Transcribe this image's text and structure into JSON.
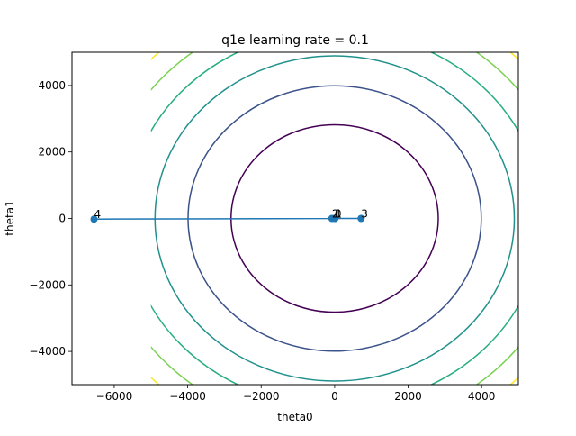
{
  "chart_data": {
    "type": "line",
    "title": "q1e learning rate = 0.1",
    "xlabel": "theta0",
    "ylabel": "theta1",
    "xlim": [
      -7150,
      5000
    ],
    "ylim": [
      -5000,
      5000
    ],
    "xticks": [
      -6000,
      -4000,
      -2000,
      0,
      2000,
      4000
    ],
    "yticks": [
      -4000,
      -2000,
      0,
      2000,
      4000
    ],
    "xtick_labels": [
      "−6000",
      "−4000",
      "−2000",
      "0",
      "2000",
      "4000"
    ],
    "ytick_labels": [
      "−4000",
      "−2000",
      "0",
      "2000",
      "4000"
    ],
    "grid": false,
    "contours": {
      "grid_extent": [
        -5000,
        5000
      ],
      "radii": [
        2820,
        3990,
        4890,
        5650,
        6320
      ],
      "colors": [
        "#440154",
        "#3b528b",
        "#21918c",
        "#27ad81",
        "#7ad151",
        "#fde725"
      ],
      "extra_radius": 6920
    },
    "path": {
      "color": "#1f77b4",
      "points": [
        {
          "label": "0",
          "x": 0,
          "y": 0
        },
        {
          "label": "1",
          "x": 10,
          "y": 0
        },
        {
          "label": "2",
          "x": -75,
          "y": 0
        },
        {
          "label": "3",
          "x": 720,
          "y": 0
        },
        {
          "label": "4",
          "x": -6550,
          "y": -20
        }
      ]
    }
  }
}
